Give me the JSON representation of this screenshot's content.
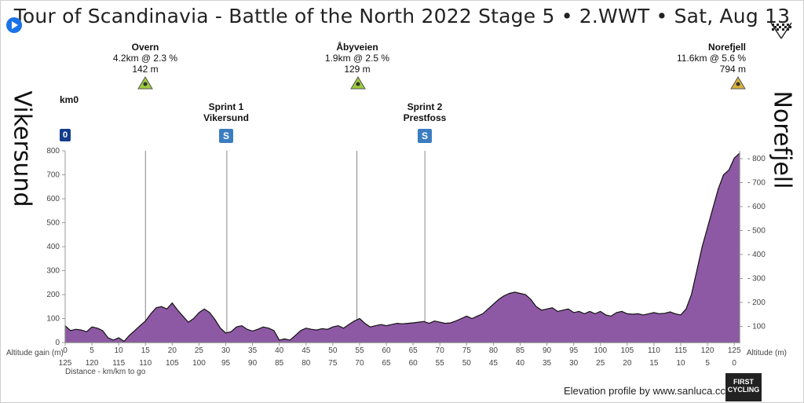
{
  "title": "Tour of Scandinavia - Battle of the North 2022 Stage 5 • 2.WWT • Sat, Aug 13",
  "start_town": "Vikersund",
  "finish_town": "Norefjell",
  "km0_label": "km0",
  "km0_badge": "0",
  "climbs": [
    {
      "name": "Overn",
      "detail": "4.2km @ 2.3 %",
      "alt": "142 m",
      "km": 15
    },
    {
      "name": "Åbyveien",
      "detail": "1.9km @ 2.5 %",
      "alt": "129 m",
      "km": 54.5
    },
    {
      "name": "Norefjell",
      "detail": "11.6km @ 5.6 %",
      "alt": "794 m",
      "km": 125
    }
  ],
  "sprints": [
    {
      "name": "Sprint 1",
      "place": "Vikersund",
      "km": 30.2,
      "badge": "S"
    },
    {
      "name": "Sprint 2",
      "place": "Prestfoss",
      "km": 67.2,
      "badge": "S"
    }
  ],
  "credit": "Elevation profile by www.sanluca.cc",
  "logo_text": "FIRST CYCLING",
  "colors": {
    "fill": "#8e59a4",
    "line": "#111111",
    "sprint": "#3b7dc0"
  },
  "chart_data": {
    "type": "area",
    "xlabel": "Altitude gain (m)",
    "x2label": "Distance - km/km to go",
    "ylabel_right": "Altitude (m)",
    "xlim": [
      0,
      126
    ],
    "ylim": [
      0,
      800
    ],
    "y_ticks": [
      0,
      100,
      200,
      300,
      400,
      500,
      600,
      700,
      800
    ],
    "x_ticks": [
      0,
      5,
      10,
      15,
      20,
      25,
      30,
      35,
      40,
      45,
      50,
      55,
      60,
      65,
      70,
      75,
      80,
      85,
      90,
      95,
      100,
      105,
      110,
      115,
      120,
      125
    ],
    "to_go_ticks": [
      125,
      120,
      115,
      110,
      105,
      100,
      95,
      90,
      85,
      80,
      75,
      70,
      65,
      60,
      55,
      50,
      45,
      40,
      35,
      30,
      25,
      20,
      15,
      10,
      5,
      0
    ],
    "grid": false,
    "x": [
      0,
      1,
      2,
      3,
      4,
      5,
      6,
      7,
      8,
      9,
      10,
      11,
      12,
      13,
      14,
      15,
      16,
      17,
      18,
      19,
      20,
      21,
      22,
      23,
      24,
      25,
      26,
      27,
      28,
      29,
      30,
      31,
      32,
      33,
      34,
      35,
      36,
      37,
      38,
      39,
      40,
      41,
      42,
      43,
      44,
      45,
      46,
      47,
      48,
      49,
      50,
      51,
      52,
      53,
      54,
      55,
      56,
      57,
      58,
      59,
      60,
      61,
      62,
      63,
      64,
      65,
      66,
      67,
      68,
      69,
      70,
      71,
      72,
      73,
      74,
      75,
      76,
      77,
      78,
      79,
      80,
      81,
      82,
      83,
      84,
      85,
      86,
      87,
      88,
      89,
      90,
      91,
      92,
      93,
      94,
      95,
      96,
      97,
      98,
      99,
      100,
      101,
      102,
      103,
      104,
      105,
      106,
      107,
      108,
      109,
      110,
      111,
      112,
      113,
      114,
      115,
      116,
      117,
      118,
      119,
      120,
      121,
      122,
      123,
      124,
      125,
      126
    ],
    "y": [
      70,
      50,
      55,
      52,
      45,
      65,
      60,
      50,
      20,
      10,
      20,
      5,
      30,
      50,
      70,
      90,
      120,
      145,
      150,
      140,
      165,
      135,
      110,
      85,
      100,
      125,
      140,
      125,
      95,
      60,
      40,
      45,
      65,
      70,
      55,
      48,
      55,
      65,
      60,
      50,
      10,
      15,
      10,
      30,
      50,
      60,
      55,
      52,
      58,
      55,
      65,
      70,
      60,
      75,
      90,
      100,
      80,
      65,
      70,
      75,
      70,
      75,
      80,
      78,
      80,
      82,
      85,
      88,
      80,
      90,
      85,
      80,
      82,
      90,
      100,
      110,
      100,
      110,
      120,
      140,
      160,
      180,
      195,
      205,
      210,
      205,
      200,
      180,
      150,
      135,
      140,
      145,
      130,
      135,
      140,
      125,
      130,
      120,
      130,
      120,
      130,
      115,
      110,
      125,
      130,
      120,
      118,
      120,
      115,
      120,
      125,
      120,
      122,
      128,
      120,
      115,
      140,
      200,
      300,
      400,
      480,
      560,
      640,
      700,
      720,
      770,
      790
    ]
  }
}
